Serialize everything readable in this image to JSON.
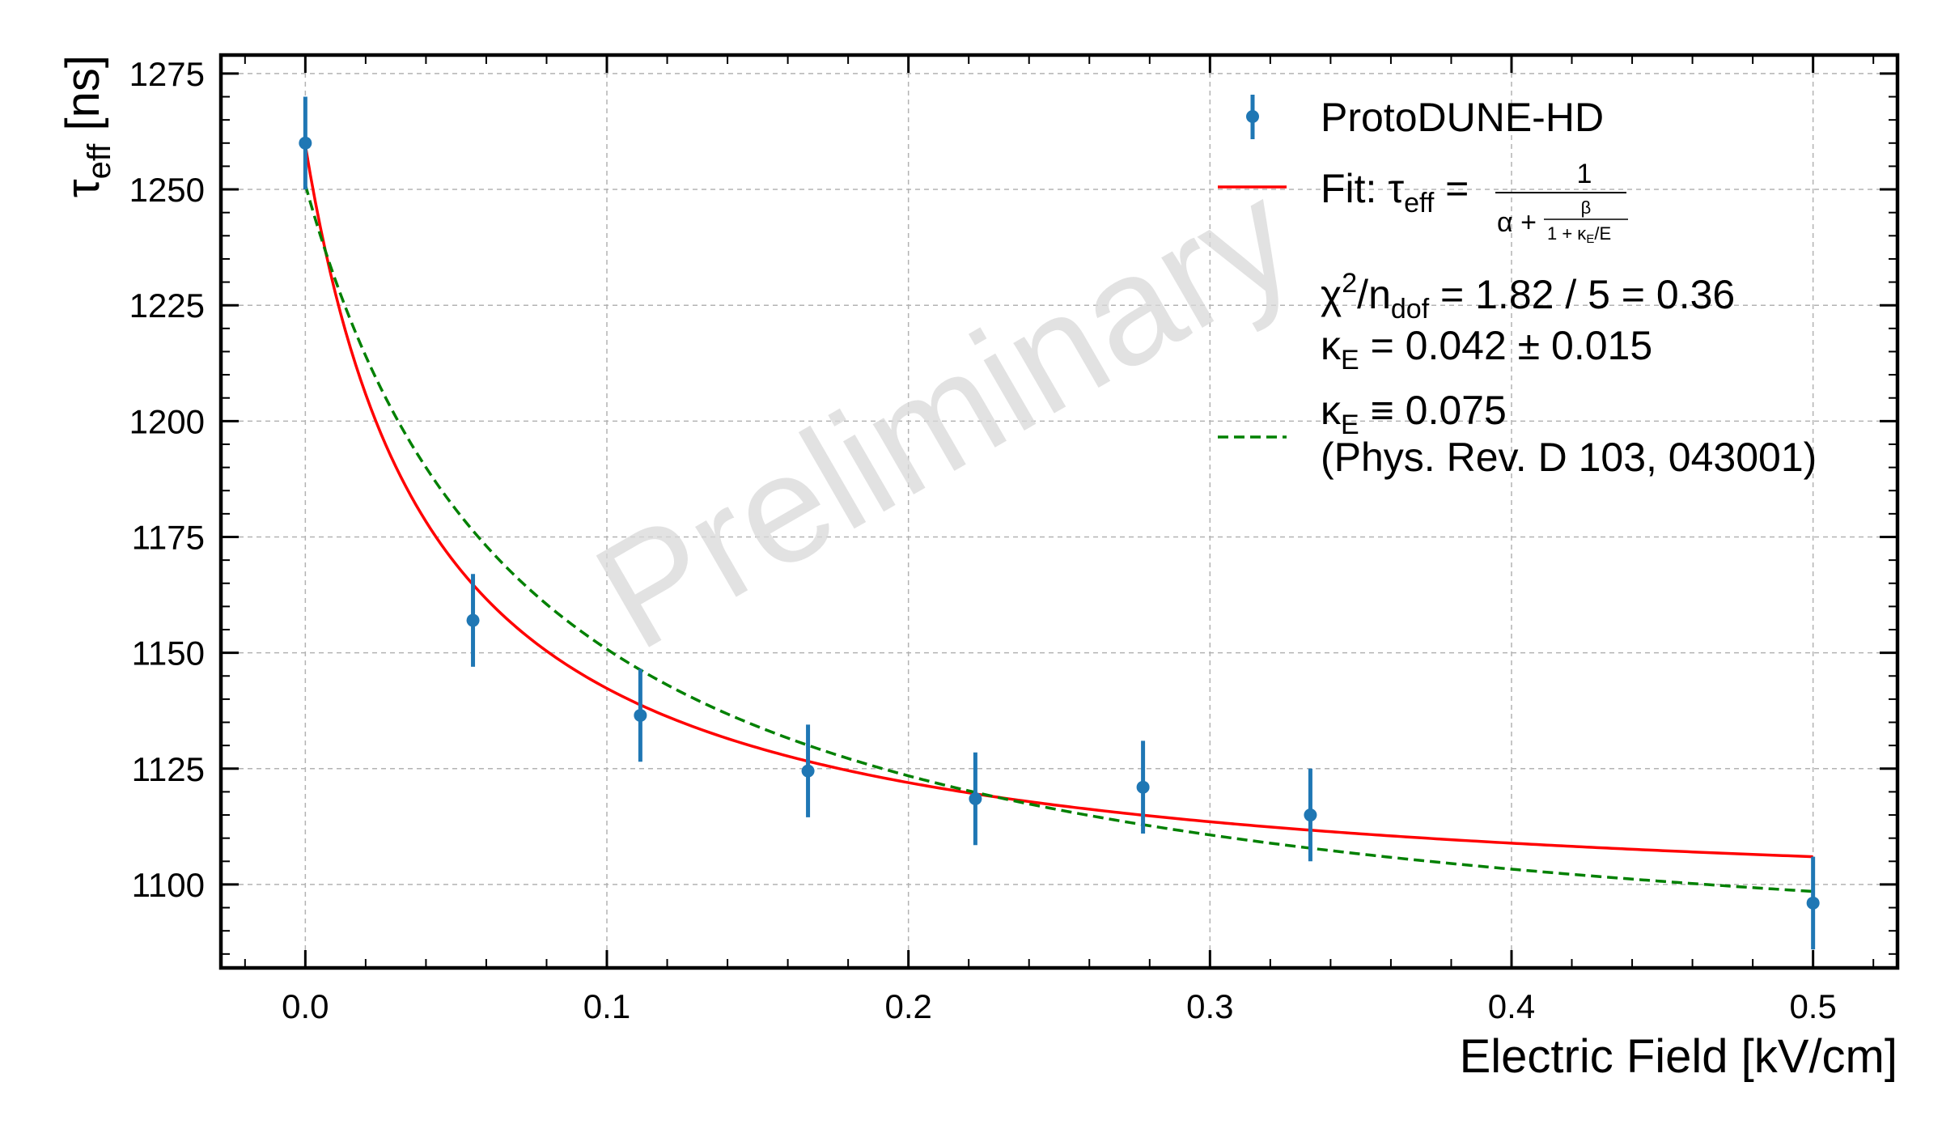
{
  "chart_data": {
    "type": "scatter",
    "watermark": "Preliminary",
    "xlabel": "Electric Field [kV/cm]",
    "ylabel": {
      "main": "τ",
      "sub": "eff",
      "unit": " [ns]"
    },
    "xlim": [
      -0.028,
      0.528
    ],
    "ylim": [
      1082,
      1279
    ],
    "x_ticks": [
      {
        "value": 0.0,
        "label": "0.0"
      },
      {
        "value": 0.1,
        "label": "0.1"
      },
      {
        "value": 0.2,
        "label": "0.2"
      },
      {
        "value": 0.3,
        "label": "0.3"
      },
      {
        "value": 0.4,
        "label": "0.4"
      },
      {
        "value": 0.5,
        "label": "0.5"
      }
    ],
    "y_ticks": [
      {
        "value": 1100,
        "label": "1100"
      },
      {
        "value": 1125,
        "label": "1125"
      },
      {
        "value": 1150,
        "label": "1150"
      },
      {
        "value": 1175,
        "label": "1175"
      },
      {
        "value": 1200,
        "label": "1200"
      },
      {
        "value": 1225,
        "label": "1225"
      },
      {
        "value": 1250,
        "label": "1250"
      },
      {
        "value": 1275,
        "label": "1275"
      }
    ],
    "x_minor_step": 0.02,
    "y_minor_step": 5,
    "grid": true,
    "legend_position": "top-right",
    "series": [
      {
        "name": "ProtoDUNE-HD",
        "kind": "errorbar",
        "color": "#1f77b4",
        "points": [
          {
            "x": 0.0,
            "y": 1260.0,
            "err": 10
          },
          {
            "x": 0.0556,
            "y": 1157.0,
            "err": 10
          },
          {
            "x": 0.1111,
            "y": 1136.5,
            "err": 10
          },
          {
            "x": 0.1667,
            "y": 1124.5,
            "err": 10
          },
          {
            "x": 0.2222,
            "y": 1118.5,
            "err": 10
          },
          {
            "x": 0.2778,
            "y": 1121.0,
            "err": 10
          },
          {
            "x": 0.3333,
            "y": 1115.0,
            "err": 10
          },
          {
            "x": 0.5,
            "y": 1096.0,
            "err": 10
          }
        ]
      },
      {
        "kind": "line",
        "style": "solid",
        "color": "#ff0000",
        "kappa": 0.042,
        "anchor_y0": 1259.5,
        "anchor_x1": 0.5,
        "anchor_y1": 1106.0
      },
      {
        "kind": "line",
        "style": "dashed",
        "color": "#008000",
        "kappa": 0.075,
        "anchor_y0": 1251.0,
        "anchor_x1": 0.5,
        "anchor_y1": 1098.5
      }
    ],
    "legend": {
      "data_label": "ProtoDUNE-HD",
      "fit_label_prefix": "Fit: τ",
      "fit_label_sub": "eff",
      "fit_label_eq": " = ",
      "fit_num": "1",
      "fit_den_prefix": "α + ",
      "fit_den_frac_num": "β",
      "fit_den_frac_den_a": "1 + κ",
      "fit_den_frac_den_sub": "E",
      "fit_den_frac_den_b": "/E",
      "chi2_a": "χ",
      "chi2_sup": "2",
      "chi2_b": "/n",
      "chi2_sub": "dof",
      "chi2_c": " = 1.82 / 5 = 0.36",
      "kappa_a": "κ",
      "kappa_sub": "E",
      "kappa_b": " = 0.042 ± 0.015",
      "fixed_a": "κ",
      "fixed_sub": "E",
      "fixed_b": " ≡ 0.075",
      "fixed_ref": "(Phys. Rev. D 103, 043001)"
    }
  }
}
